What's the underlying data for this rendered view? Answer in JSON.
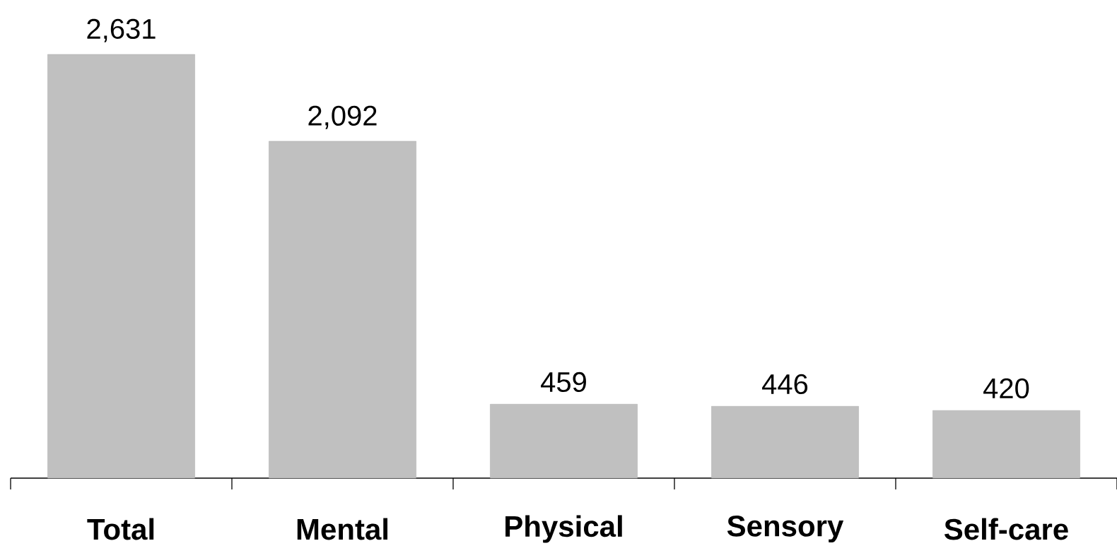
{
  "chart_data": {
    "type": "bar",
    "categories": [
      "Total",
      "Mental",
      "Physical",
      "Sensory",
      "Self-care"
    ],
    "values": [
      2631,
      2092,
      459,
      446,
      420
    ],
    "value_labels": [
      "2,631",
      "2,092",
      "459",
      "446",
      "420"
    ],
    "color": "#c0c0c0",
    "grid": false
  }
}
